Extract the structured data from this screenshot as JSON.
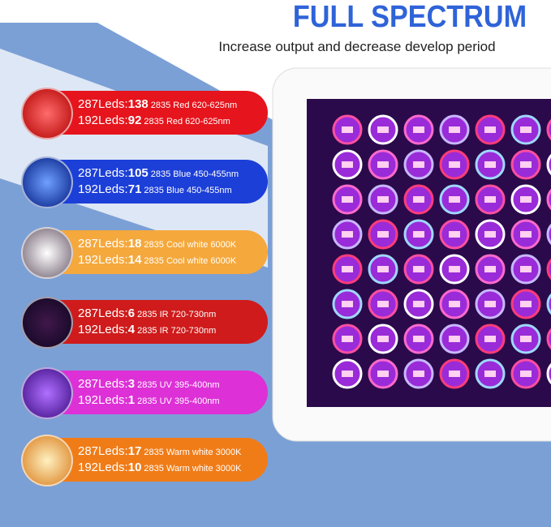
{
  "header": {
    "title": "FULL SPECTRUM",
    "subtitle": "Increase output and decrease develop period"
  },
  "panels": [
    {
      "lines": [
        {
          "prefix": "287Leds:",
          "count": 138,
          "spec": "2835 Red 620-625nm"
        },
        {
          "prefix": "192Leds:",
          "count": 92,
          "spec": "2835 Red 620-625nm"
        }
      ]
    },
    {
      "lines": [
        {
          "prefix": "287Leds:",
          "count": 105,
          "spec": "2835 Blue 450-455nm"
        },
        {
          "prefix": "192Leds:",
          "count": 71,
          "spec": "2835 Blue 450-455nm"
        }
      ]
    },
    {
      "lines": [
        {
          "prefix": "287Leds:",
          "count": 18,
          "spec": "2835 Cool white 6000K"
        },
        {
          "prefix": "192Leds:",
          "count": 14,
          "spec": "2835 Cool white 6000K"
        }
      ]
    },
    {
      "lines": [
        {
          "prefix": "287Leds:",
          "count": 6,
          "spec": "2835 IR 720-730nm"
        },
        {
          "prefix": "192Leds:",
          "count": 4,
          "spec": "2835 IR 720-730nm"
        }
      ]
    },
    {
      "lines": [
        {
          "prefix": "287Leds:",
          "count": 3,
          "spec": "2835 UV 395-400nm"
        },
        {
          "prefix": "192Leds:",
          "count": 1,
          "spec": "2835 UV 395-400nm"
        }
      ]
    },
    {
      "lines": [
        {
          "prefix": "287Leds:",
          "count": 17,
          "spec": "2835 Warm white 3000K"
        },
        {
          "prefix": "192Leds:",
          "count": 10,
          "spec": "2835 Warm white 3000K"
        }
      ]
    }
  ]
}
